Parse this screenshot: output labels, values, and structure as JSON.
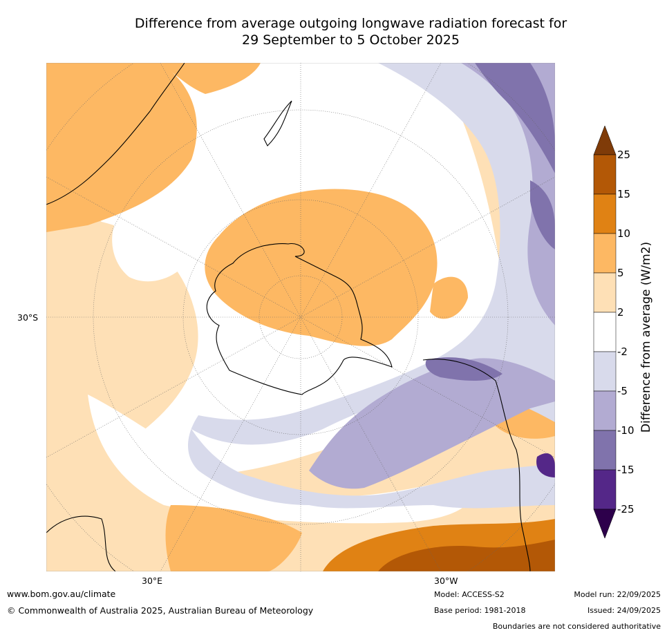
{
  "title": {
    "line1": "Difference from average outgoing longwave radiation forecast for",
    "line2": "29 September to 5 October 2025"
  },
  "map": {
    "projection": "south-polar-stereographic",
    "axis_labels": {
      "left": "30°S",
      "bottom_left": "30°E",
      "bottom_right": "30°W"
    }
  },
  "colorbar": {
    "title": "Difference from average (W/m2)",
    "ticks": [
      "25",
      "15",
      "10",
      "5",
      "2",
      "-2",
      "-5",
      "-10",
      "-15",
      "-25"
    ],
    "bins": [
      {
        "range": ">25",
        "color": "#7f3b08"
      },
      {
        "range": "15 to 25",
        "color": "#b35806"
      },
      {
        "range": "10 to 15",
        "color": "#e08214"
      },
      {
        "range": "5 to 10",
        "color": "#fdb863"
      },
      {
        "range": "2 to 5",
        "color": "#fee0b6"
      },
      {
        "range": "-2 to 2",
        "color": "#ffffff"
      },
      {
        "range": "-5 to -2",
        "color": "#d8daeb"
      },
      {
        "range": "-10 to -5",
        "color": "#b2abd2"
      },
      {
        "range": "-15 to -10",
        "color": "#8073ac"
      },
      {
        "range": "-25 to -15",
        "color": "#542788"
      },
      {
        "range": "<-25",
        "color": "#2d004b"
      }
    ]
  },
  "footer": {
    "url": "www.bom.gov.au/climate",
    "copyright": "© Commonwealth of Australia 2025, Australian Bureau of Meteorology",
    "model": "Model: ACCESS-S2",
    "base_period": "Base period: 1981-2018",
    "model_run": "Model run: 22/09/2025",
    "issued": "Issued: 24/09/2025",
    "disclaimer": "Boundaries are not considered authoritative"
  }
}
